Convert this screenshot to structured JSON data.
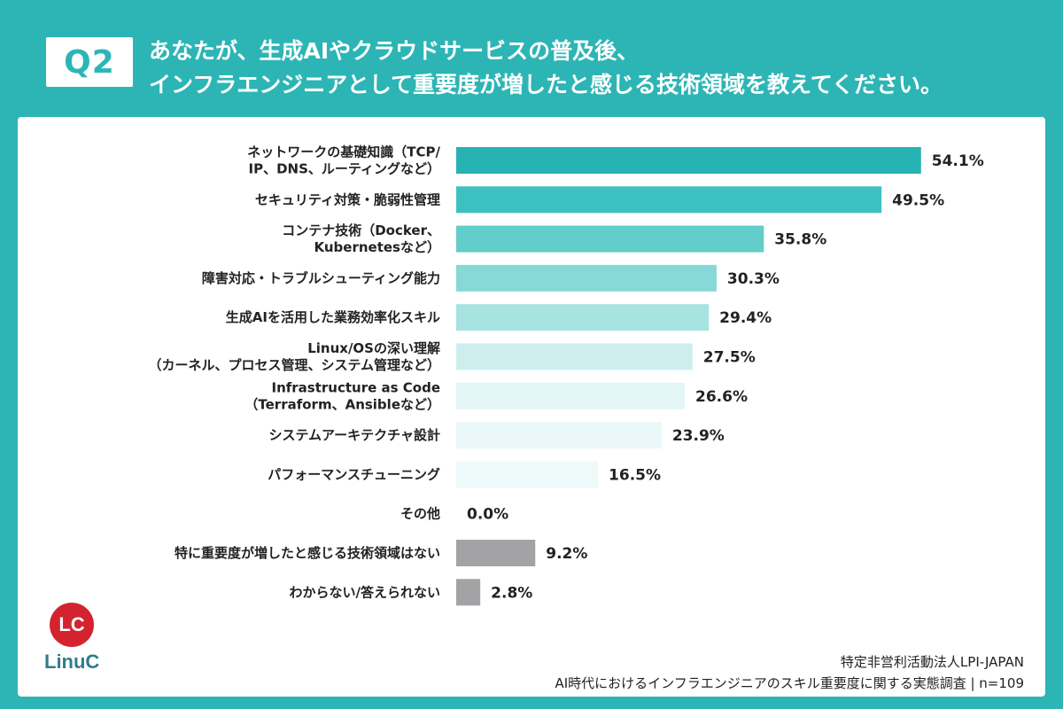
{
  "header": {
    "badge": "Q2",
    "title_line1": "あなたが、生成AIやクラウドサービスの普及後、",
    "title_line2": "インフラエンジニアとして重要度が増したと感じる技術領域を教えてください。"
  },
  "logo": {
    "mark": "LC",
    "name": "LinuC"
  },
  "footer": {
    "org": "特定非営利活動法人LPI-JAPAN",
    "survey": "AI時代におけるインフラエンジニアのスキル重要度に関する実態調査 | n=109"
  },
  "colors": {
    "background": "#2db5b5",
    "bars": [
      "#27b2b3",
      "#3dc1c0",
      "#62cdca",
      "#86d9d6",
      "#a7e3e0",
      "#ccefee",
      "#e3f5f6",
      "#eaf8f9",
      "#eef9fa",
      "#eef9fa",
      "#a3a3a6",
      "#a3a3a6"
    ]
  },
  "chart_data": {
    "type": "bar",
    "orientation": "horizontal",
    "categories": [
      "ネットワークの基礎知識（TCP/\nIP、DNS、ルーティングなど）",
      "セキュリティ対策・脆弱性管理",
      "コンテナ技術（Docker、\nKubernetesなど）",
      "障害対応・トラブルシューティング能力",
      "生成AIを活用した業務効率化スキル",
      "Linux/OSの深い理解\n（カーネル、プロセス管理、システム管理など）",
      "Infrastructure as Code\n（Terraform、Ansibleなど）",
      "システムアーキテクチャ設計",
      "パフォーマンスチューニング",
      "その他",
      "特に重要度が増したと感じる技術領域はない",
      "わからない/答えられない"
    ],
    "values": [
      54.1,
      49.5,
      35.8,
      30.3,
      29.4,
      27.5,
      26.6,
      23.9,
      16.5,
      0.0,
      9.2,
      2.8
    ],
    "value_labels": [
      "54.1%",
      "49.5%",
      "35.8%",
      "30.3%",
      "29.4%",
      "27.5%",
      "26.6%",
      "23.9%",
      "16.5%",
      "0.0%",
      "9.2%",
      "2.8%"
    ],
    "xlim": [
      0,
      60
    ],
    "grid": false
  }
}
